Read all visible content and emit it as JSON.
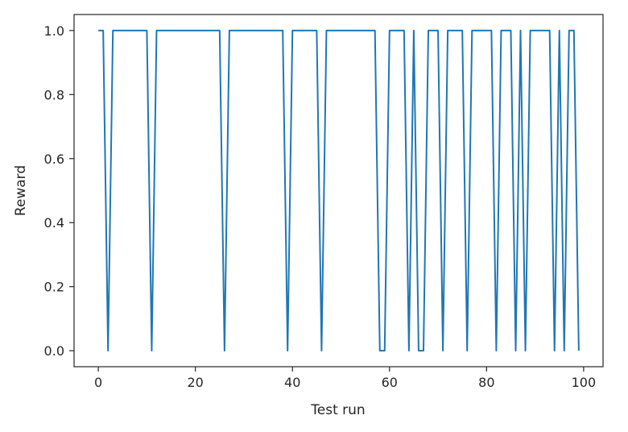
{
  "chart_data": {
    "type": "line",
    "title": "",
    "xlabel": "Test run",
    "ylabel": "Reward",
    "xlim": [
      -5,
      104
    ],
    "ylim": [
      -0.05,
      1.05
    ],
    "xticks": [
      0,
      20,
      40,
      60,
      80,
      100
    ],
    "yticks": [
      0.0,
      0.2,
      0.4,
      0.6,
      0.8,
      1.0
    ],
    "xtick_labels": [
      "0",
      "20",
      "40",
      "60",
      "80",
      "100"
    ],
    "ytick_labels": [
      "0.0",
      "0.2",
      "0.4",
      "0.6",
      "0.8",
      "1.0"
    ],
    "grid": false,
    "legend": "none",
    "series": [
      {
        "color": "#1f77b4",
        "x": [
          0,
          1,
          2,
          3,
          4,
          5,
          6,
          7,
          8,
          9,
          10,
          11,
          12,
          13,
          14,
          15,
          16,
          17,
          18,
          19,
          20,
          21,
          22,
          23,
          24,
          25,
          26,
          27,
          28,
          29,
          30,
          31,
          32,
          33,
          34,
          35,
          36,
          37,
          38,
          39,
          40,
          41,
          42,
          43,
          44,
          45,
          46,
          47,
          48,
          49,
          50,
          51,
          52,
          53,
          54,
          55,
          56,
          57,
          58,
          59,
          60,
          61,
          62,
          63,
          64,
          65,
          66,
          67,
          68,
          69,
          70,
          71,
          72,
          73,
          74,
          75,
          76,
          77,
          78,
          79,
          80,
          81,
          82,
          83,
          84,
          85,
          86,
          87,
          88,
          89,
          90,
          91,
          92,
          93,
          94,
          95,
          96,
          97,
          98,
          99
        ],
        "y": [
          1,
          1,
          0,
          1,
          1,
          1,
          1,
          1,
          1,
          1,
          1,
          0,
          1,
          1,
          1,
          1,
          1,
          1,
          1,
          1,
          1,
          1,
          1,
          1,
          1,
          1,
          0,
          1,
          1,
          1,
          1,
          1,
          1,
          1,
          1,
          1,
          1,
          1,
          1,
          0,
          1,
          1,
          1,
          1,
          1,
          1,
          0,
          1,
          1,
          1,
          1,
          1,
          1,
          1,
          1,
          1,
          1,
          1,
          0,
          0,
          1,
          1,
          1,
          1,
          0,
          1,
          0,
          0,
          1,
          1,
          1,
          0,
          1,
          1,
          1,
          1,
          0,
          1,
          1,
          1,
          1,
          1,
          0,
          1,
          1,
          1,
          0,
          1,
          0,
          1,
          1,
          1,
          1,
          1,
          0,
          1,
          0,
          1,
          1,
          0
        ]
      }
    ]
  }
}
